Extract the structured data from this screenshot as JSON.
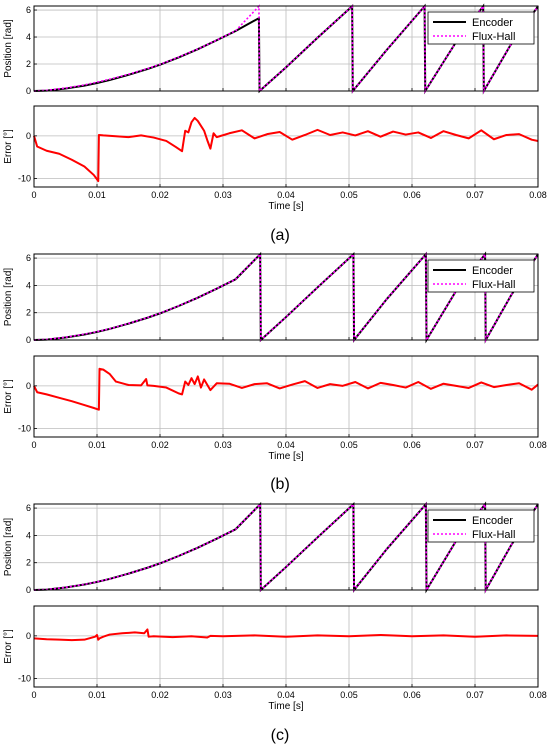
{
  "captions": [
    "(a)",
    "(b)",
    "(c)"
  ],
  "legend": {
    "encoder": "Encoder",
    "flux_hall": "Flux-Hall"
  },
  "colors": {
    "encoder": "#000000",
    "flux_hall": "#ff00ff",
    "error": "#ff0000",
    "grid": "#bdbdbd"
  },
  "chart_data": [
    {
      "panel": "a-position",
      "type": "line",
      "xlabel": "",
      "ylabel": "Position [rad]",
      "xlim": [
        0,
        0.08
      ],
      "ylim": [
        0,
        6.3
      ],
      "grid": true,
      "legend_position": "top-right",
      "yticks": [
        "0",
        "2",
        "4",
        "6"
      ],
      "series": [
        {
          "name": "Encoder",
          "style": "solid",
          "x": [
            0,
            0.002,
            0.005,
            0.008,
            0.01,
            0.012,
            0.015,
            0.018,
            0.02,
            0.023,
            0.026,
            0.029,
            0.032,
            0.0357,
            0.0358,
            0.04,
            0.045,
            0.0505,
            0.0506,
            0.056,
            0.062,
            0.0621,
            0.067,
            0.0713,
            0.0714,
            0.0755,
            0.08
          ],
          "y": [
            0,
            0.03,
            0.18,
            0.4,
            0.59,
            0.81,
            1.2,
            1.63,
            1.95,
            2.5,
            3.1,
            3.76,
            4.45,
            5.4,
            0,
            1.75,
            3.95,
            6.28,
            0,
            3.05,
            6.28,
            0,
            3.63,
            6.28,
            0,
            3.3,
            6.28
          ]
        },
        {
          "name": "Flux-Hall",
          "style": "dotted",
          "x": [
            0,
            0.002,
            0.005,
            0.008,
            0.01,
            0.012,
            0.015,
            0.018,
            0.02,
            0.023,
            0.026,
            0.029,
            0.032,
            0.0357,
            0.0358,
            0.04,
            0.045,
            0.0505,
            0.0506,
            0.056,
            0.062,
            0.0621,
            0.067,
            0.0713,
            0.0714,
            0.0755,
            0.08
          ],
          "y": [
            0,
            0.05,
            0.22,
            0.45,
            0.66,
            0.87,
            1.24,
            1.66,
            1.97,
            2.52,
            3.11,
            3.77,
            4.46,
            6.28,
            0,
            1.75,
            3.95,
            6.28,
            0,
            3.05,
            6.28,
            0,
            3.63,
            6.28,
            0,
            3.3,
            6.28
          ]
        }
      ]
    },
    {
      "panel": "a-error",
      "type": "line",
      "xlabel": "Time [s]",
      "ylabel": "Error [°]",
      "xlim": [
        0,
        0.08
      ],
      "ylim": [
        -12,
        7
      ],
      "grid": true,
      "xticks": [
        "0",
        "0.01",
        "0.02",
        "0.03",
        "0.04",
        "0.05",
        "0.06",
        "0.07",
        "0.08"
      ],
      "yticks": [
        "-10",
        "0"
      ],
      "series": [
        {
          "name": "",
          "x": [
            0,
            0.0005,
            0.002,
            0.004,
            0.006,
            0.008,
            0.0095,
            0.0102,
            0.0103,
            0.011,
            0.013,
            0.015,
            0.017,
            0.019,
            0.021,
            0.0225,
            0.0235,
            0.024,
            0.0245,
            0.025,
            0.0255,
            0.026,
            0.027,
            0.0275,
            0.028,
            0.0285,
            0.029,
            0.031,
            0.033,
            0.035,
            0.037,
            0.039,
            0.041,
            0.043,
            0.045,
            0.047,
            0.049,
            0.051,
            0.053,
            0.055,
            0.057,
            0.059,
            0.061,
            0.063,
            0.065,
            0.067,
            0.069,
            0.071,
            0.073,
            0.075,
            0.077,
            0.079,
            0.08
          ],
          "y": [
            0,
            -2.5,
            -3.5,
            -4.2,
            -5.6,
            -7.2,
            -9.2,
            -10.6,
            0.2,
            0.1,
            -0.1,
            -0.3,
            0.1,
            -0.4,
            -1.2,
            -2.6,
            -3.6,
            1.2,
            0.8,
            3.2,
            4.2,
            3.5,
            1.2,
            -1.0,
            -3.0,
            0.6,
            -0.3,
            0.6,
            1.3,
            -0.6,
            0.4,
            0.9,
            -0.9,
            0.2,
            1.4,
            0.2,
            0.8,
            0.1,
            1.1,
            -0.2,
            1.0,
            0.3,
            0.8,
            -0.5,
            1.1,
            0.2,
            -0.6,
            1.3,
            -0.8,
            0.2,
            0.4,
            -0.9,
            -1.2
          ]
        }
      ]
    },
    {
      "panel": "b-position",
      "type": "line",
      "xlabel": "",
      "ylabel": "Position [rad]",
      "xlim": [
        0,
        0.08
      ],
      "ylim": [
        0,
        6.3
      ],
      "grid": true,
      "legend_position": "top-right",
      "yticks": [
        "0",
        "2",
        "4",
        "6"
      ],
      "series": [
        {
          "name": "Encoder",
          "style": "solid",
          "x": [
            0,
            0.002,
            0.005,
            0.008,
            0.01,
            0.012,
            0.015,
            0.018,
            0.02,
            0.023,
            0.026,
            0.029,
            0.032,
            0.0359,
            0.036,
            0.04,
            0.045,
            0.0507,
            0.0508,
            0.056,
            0.0622,
            0.0623,
            0.067,
            0.0716,
            0.0717,
            0.0757,
            0.08
          ],
          "y": [
            0,
            0.03,
            0.18,
            0.4,
            0.59,
            0.81,
            1.2,
            1.63,
            1.95,
            2.5,
            3.1,
            3.76,
            4.45,
            6.28,
            0,
            1.68,
            3.85,
            6.28,
            0,
            3.0,
            6.28,
            0,
            3.6,
            6.28,
            0,
            3.25,
            6.28
          ]
        },
        {
          "name": "Flux-Hall",
          "style": "dotted",
          "x": [
            0,
            0.002,
            0.005,
            0.008,
            0.01,
            0.012,
            0.015,
            0.018,
            0.02,
            0.023,
            0.026,
            0.029,
            0.032,
            0.0359,
            0.036,
            0.04,
            0.045,
            0.0507,
            0.0508,
            0.056,
            0.0622,
            0.0623,
            0.067,
            0.0716,
            0.0717,
            0.0757,
            0.08
          ],
          "y": [
            0,
            0.04,
            0.2,
            0.43,
            0.61,
            0.82,
            1.21,
            1.64,
            1.96,
            2.51,
            3.1,
            3.76,
            4.45,
            6.28,
            0,
            1.68,
            3.85,
            6.28,
            0,
            3.0,
            6.28,
            0,
            3.6,
            6.28,
            0,
            3.25,
            6.28
          ]
        }
      ]
    },
    {
      "panel": "b-error",
      "type": "line",
      "xlabel": "Time [s]",
      "ylabel": "Error [°]",
      "xlim": [
        0,
        0.08
      ],
      "ylim": [
        -12,
        7
      ],
      "grid": true,
      "xticks": [
        "0",
        "0.01",
        "0.02",
        "0.03",
        "0.04",
        "0.05",
        "0.06",
        "0.07",
        "0.08"
      ],
      "yticks": [
        "-10",
        "0"
      ],
      "series": [
        {
          "name": "",
          "x": [
            0,
            0.0005,
            0.002,
            0.004,
            0.006,
            0.008,
            0.0095,
            0.0103,
            0.0104,
            0.011,
            0.012,
            0.013,
            0.015,
            0.017,
            0.0178,
            0.018,
            0.019,
            0.021,
            0.023,
            0.0235,
            0.024,
            0.0245,
            0.025,
            0.0255,
            0.026,
            0.0265,
            0.027,
            0.028,
            0.029,
            0.031,
            0.033,
            0.035,
            0.037,
            0.039,
            0.041,
            0.043,
            0.045,
            0.047,
            0.049,
            0.051,
            0.053,
            0.055,
            0.057,
            0.059,
            0.061,
            0.063,
            0.065,
            0.067,
            0.069,
            0.071,
            0.073,
            0.075,
            0.077,
            0.079,
            0.08
          ],
          "y": [
            0,
            -1.5,
            -2.0,
            -2.8,
            -3.6,
            -4.5,
            -5.2,
            -5.6,
            4.0,
            3.8,
            2.8,
            1.0,
            0.2,
            0.1,
            1.6,
            0.1,
            0.0,
            -0.4,
            -1.8,
            -2.0,
            1.0,
            0.2,
            1.8,
            0.4,
            2.2,
            -0.4,
            1.5,
            -1.0,
            0.6,
            0.5,
            -0.5,
            0.4,
            0.6,
            -0.6,
            0.3,
            1.1,
            -0.5,
            0.4,
            0.0,
            0.9,
            -0.6,
            0.7,
            0.2,
            -0.4,
            0.9,
            -0.7,
            0.5,
            0.0,
            -0.5,
            0.8,
            -0.3,
            0.2,
            0.6,
            -0.9,
            0.3
          ]
        }
      ]
    },
    {
      "panel": "c-position",
      "type": "line",
      "xlabel": "",
      "ylabel": "Position [rad]",
      "xlim": [
        0,
        0.08
      ],
      "ylim": [
        0,
        6.3
      ],
      "grid": true,
      "legend_position": "top-right",
      "yticks": [
        "0",
        "2",
        "4",
        "6"
      ],
      "series": [
        {
          "name": "Encoder",
          "style": "solid",
          "x": [
            0,
            0.002,
            0.005,
            0.008,
            0.01,
            0.012,
            0.015,
            0.018,
            0.02,
            0.023,
            0.026,
            0.029,
            0.032,
            0.0359,
            0.036,
            0.04,
            0.045,
            0.0507,
            0.0508,
            0.056,
            0.0622,
            0.0623,
            0.067,
            0.0716,
            0.0717,
            0.0757,
            0.08
          ],
          "y": [
            0,
            0.03,
            0.18,
            0.4,
            0.59,
            0.81,
            1.2,
            1.63,
            1.95,
            2.5,
            3.1,
            3.76,
            4.45,
            6.28,
            0,
            1.68,
            3.85,
            6.28,
            0,
            3.0,
            6.28,
            0,
            3.6,
            6.28,
            0,
            3.25,
            6.28
          ]
        },
        {
          "name": "Flux-Hall",
          "style": "dotted",
          "x": [
            0,
            0.002,
            0.005,
            0.008,
            0.01,
            0.012,
            0.015,
            0.018,
            0.02,
            0.023,
            0.026,
            0.029,
            0.032,
            0.0359,
            0.036,
            0.04,
            0.045,
            0.0507,
            0.0508,
            0.056,
            0.0622,
            0.0623,
            0.067,
            0.0716,
            0.0717,
            0.0757,
            0.08
          ],
          "y": [
            0,
            0.03,
            0.19,
            0.41,
            0.6,
            0.81,
            1.2,
            1.63,
            1.95,
            2.5,
            3.1,
            3.76,
            4.45,
            6.28,
            0,
            1.68,
            3.85,
            6.28,
            0,
            3.0,
            6.28,
            0,
            3.6,
            6.28,
            0,
            3.25,
            6.28
          ]
        }
      ]
    },
    {
      "panel": "c-error",
      "type": "line",
      "xlabel": "Time [s]",
      "ylabel": "Error [°]",
      "xlim": [
        0,
        0.08
      ],
      "ylim": [
        -12,
        7
      ],
      "grid": true,
      "xticks": [
        "0",
        "0.01",
        "0.02",
        "0.03",
        "0.04",
        "0.05",
        "0.06",
        "0.07",
        "0.08"
      ],
      "yticks": [
        "-10",
        "0"
      ],
      "series": [
        {
          "name": "",
          "x": [
            0,
            0.002,
            0.004,
            0.006,
            0.008,
            0.009,
            0.0097,
            0.01,
            0.0102,
            0.0104,
            0.011,
            0.012,
            0.014,
            0.016,
            0.0175,
            0.018,
            0.0182,
            0.019,
            0.022,
            0.025,
            0.0275,
            0.028,
            0.03,
            0.035,
            0.04,
            0.045,
            0.05,
            0.055,
            0.06,
            0.065,
            0.07,
            0.075,
            0.08
          ],
          "y": [
            -0.6,
            -0.8,
            -0.9,
            -1.0,
            -0.9,
            -0.5,
            -0.2,
            0.2,
            -0.9,
            -0.6,
            -0.2,
            0.3,
            0.6,
            0.8,
            0.6,
            1.5,
            -0.2,
            -0.1,
            -0.3,
            -0.1,
            -0.4,
            0.0,
            -0.1,
            0.1,
            -0.2,
            0.1,
            -0.1,
            0.2,
            -0.1,
            0.1,
            -0.2,
            0.1,
            0.0
          ]
        }
      ]
    }
  ]
}
